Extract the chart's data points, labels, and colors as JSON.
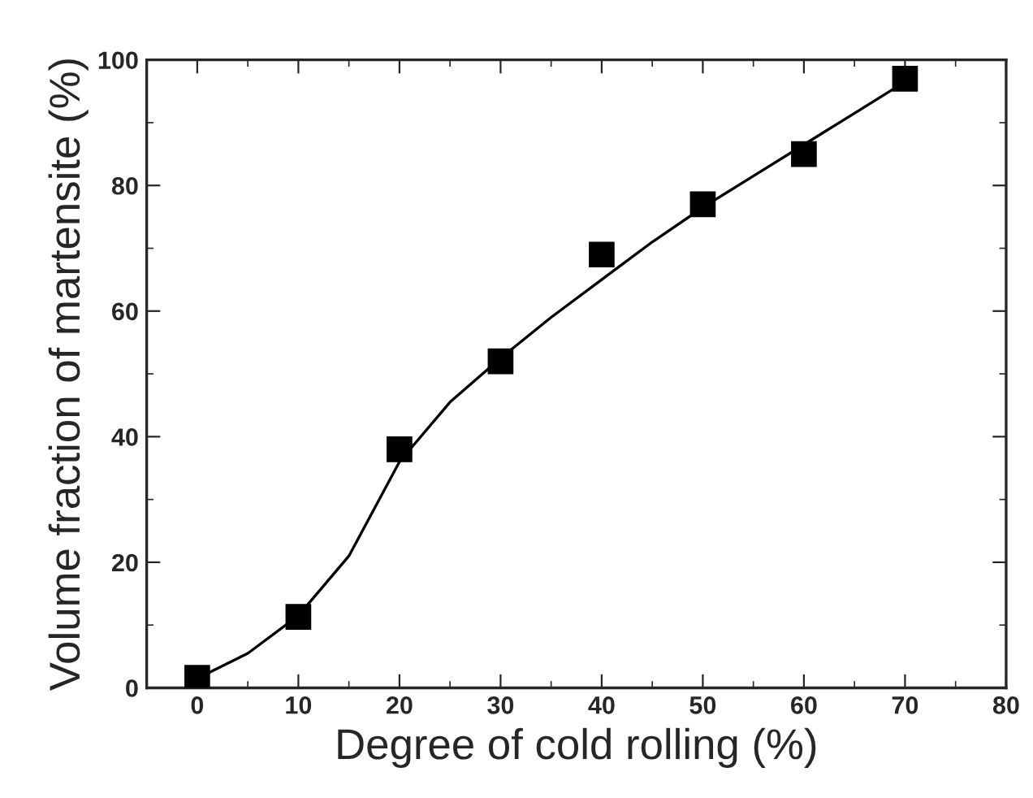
{
  "chart_data": {
    "type": "scatter",
    "xlabel": "Degree of cold rolling (%)",
    "ylabel": "Volume fraction of martensite (%)",
    "x": [
      0,
      10,
      20,
      30,
      40,
      50,
      60,
      70
    ],
    "series": [
      {
        "color": "#000000",
        "marker": "square",
        "values": [
          1.6,
          11.3,
          38,
          52,
          69,
          77,
          85,
          97
        ]
      },
      {
        "type": "line",
        "color": "#000000",
        "marker": "none",
        "line_style": "solid",
        "x": [
          0,
          5,
          10,
          15,
          20,
          25,
          30,
          35,
          40,
          45,
          50,
          55,
          60,
          65,
          70
        ],
        "values": [
          1.5,
          5.5,
          11.5,
          21,
          36,
          45.5,
          52.5,
          59,
          65,
          71,
          76.5,
          81.5,
          86.5,
          91.5,
          96.5
        ]
      }
    ],
    "xlim": [
      -5,
      80
    ],
    "ylim": [
      0,
      100
    ],
    "xticks": [
      0,
      10,
      20,
      30,
      40,
      50,
      60,
      70,
      80
    ],
    "yticks": [
      0,
      20,
      40,
      60,
      80,
      100
    ],
    "grid": false,
    "legend": false
  }
}
